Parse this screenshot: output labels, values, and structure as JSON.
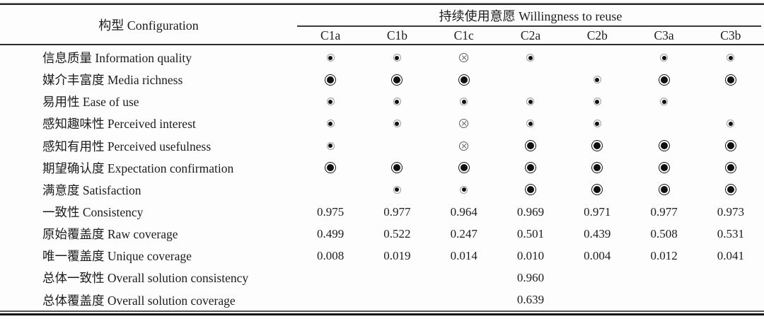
{
  "table": {
    "config_header": "构型 Configuration",
    "outcome_header": "持续使用意愿 Willingness to reuse",
    "columns": [
      "C1a",
      "C1b",
      "C1c",
      "C2a",
      "C2b",
      "C3a",
      "C3b"
    ],
    "symbols": {
      "core": "large-filled-circle-icon",
      "present": "small-filled-circle-icon",
      "absent": "circled-cross-icon",
      "blank": "empty-cell"
    },
    "condition_rows": [
      {
        "label": "信息质量 Information quality",
        "cells": [
          "present",
          "present",
          "absent",
          "present",
          "",
          "present",
          "present"
        ]
      },
      {
        "label": "媒介丰富度 Media richness",
        "cells": [
          "core",
          "core",
          "core",
          "",
          "present",
          "core",
          "core"
        ]
      },
      {
        "label": "易用性 Ease of use",
        "cells": [
          "present",
          "present",
          "present",
          "present",
          "present",
          "present",
          ""
        ]
      },
      {
        "label": "感知趣味性 Perceived interest",
        "cells": [
          "present",
          "present",
          "absent",
          "present",
          "present",
          "",
          "present"
        ]
      },
      {
        "label": "感知有用性 Perceived usefulness",
        "cells": [
          "present",
          "",
          "absent",
          "core",
          "core",
          "core",
          "core"
        ]
      },
      {
        "label": "期望确认度 Expectation confirmation",
        "cells": [
          "core",
          "core",
          "core",
          "core",
          "core",
          "core",
          "core"
        ]
      },
      {
        "label": "满意度 Satisfaction",
        "cells": [
          "",
          "present",
          "present",
          "core",
          "core",
          "core",
          "core"
        ]
      }
    ],
    "metric_rows": [
      {
        "label": "一致性 Consistency",
        "values": [
          "0.975",
          "0.977",
          "0.964",
          "0.969",
          "0.971",
          "0.977",
          "0.973"
        ]
      },
      {
        "label": "原始覆盖度 Raw coverage",
        "values": [
          "0.499",
          "0.522",
          "0.247",
          "0.501",
          "0.439",
          "0.508",
          "0.531"
        ]
      },
      {
        "label": "唯一覆盖度 Unique coverage",
        "values": [
          "0.008",
          "0.019",
          "0.014",
          "0.010",
          "0.004",
          "0.012",
          "0.041"
        ]
      }
    ],
    "overall_rows": [
      {
        "label": "总体一致性 Overall solution consistency",
        "values": [
          "",
          "",
          "",
          "0.960",
          "",
          "",
          ""
        ]
      },
      {
        "label": "总体覆盖度 Overall solution coverage",
        "values": [
          "",
          "",
          "",
          "0.639",
          "",
          "",
          ""
        ]
      }
    ]
  }
}
